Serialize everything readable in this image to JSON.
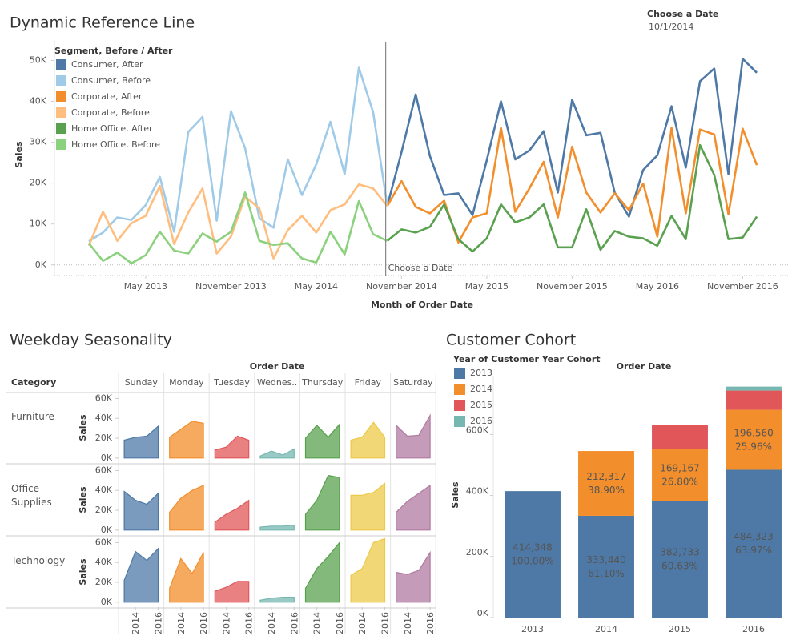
{
  "parameter": {
    "label": "Choose a Date",
    "value": "10/1/2014"
  },
  "chart_data": [
    {
      "type": "line",
      "title": "Dynamic Reference Line",
      "xlabel": "Month of Order Date",
      "ylabel": "Sales",
      "legend_title": "Segment, Before / After",
      "legend": "top-left",
      "reference_line": {
        "label": "Choose a Date"
      },
      "x": [
        "2013-01",
        "2013-02",
        "2013-03",
        "2013-04",
        "2013-05",
        "2013-06",
        "2013-07",
        "2013-08",
        "2013-09",
        "2013-10",
        "2013-11",
        "2013-12",
        "2014-01",
        "2014-02",
        "2014-03",
        "2014-04",
        "2014-05",
        "2014-06",
        "2014-07",
        "2014-08",
        "2014-09",
        "2014-10",
        "2014-11",
        "2014-12",
        "2015-01",
        "2015-02",
        "2015-03",
        "2015-04",
        "2015-05",
        "2015-06",
        "2015-07",
        "2015-08",
        "2015-09",
        "2015-10",
        "2015-11",
        "2015-12",
        "2016-01",
        "2016-02",
        "2016-03",
        "2016-04",
        "2016-05",
        "2016-06",
        "2016-07",
        "2016-08",
        "2016-09",
        "2016-10",
        "2016-11",
        "2016-12"
      ],
      "xticks": [
        {
          "value": "2013-05",
          "label": "May 2013"
        },
        {
          "value": "2013-11",
          "label": "November 2013"
        },
        {
          "value": "2014-05",
          "label": "May 2014"
        },
        {
          "value": "2014-11",
          "label": "November 2014"
        },
        {
          "value": "2015-05",
          "label": "May 2015"
        },
        {
          "value": "2015-11",
          "label": "November 2015"
        },
        {
          "value": "2016-05",
          "label": "May 2016"
        },
        {
          "value": "2016-11",
          "label": "November 2016"
        }
      ],
      "ylim": [
        -2000,
        54000
      ],
      "yticks": [
        {
          "value": 0,
          "label": "0K"
        },
        {
          "value": 10000,
          "label": "10K"
        },
        {
          "value": 20000,
          "label": "20K"
        },
        {
          "value": 30000,
          "label": "30K"
        },
        {
          "value": 40000,
          "label": "40K"
        },
        {
          "value": 50000,
          "label": "50K"
        }
      ],
      "series": [
        {
          "name": "Consumer, After",
          "color": "#4e79a7",
          "values": [
            null,
            null,
            null,
            null,
            null,
            null,
            null,
            null,
            null,
            null,
            null,
            null,
            null,
            null,
            null,
            null,
            null,
            null,
            null,
            null,
            null,
            14400,
            27600,
            41700,
            26600,
            17100,
            17500,
            12200,
            25600,
            40000,
            25800,
            28000,
            32700,
            17700,
            40400,
            31700,
            32300,
            17700,
            11800,
            23200,
            26800,
            38800,
            23800,
            44900,
            48000,
            22200,
            50400,
            47000
          ]
        },
        {
          "name": "Consumer, Before",
          "color": "#a0cbe8",
          "values": [
            5800,
            7900,
            11600,
            11000,
            14600,
            21500,
            8100,
            32500,
            36200,
            10800,
            37600,
            28500,
            11400,
            9100,
            25800,
            17100,
            24600,
            35000,
            22200,
            48200,
            37400,
            14400,
            null,
            null,
            null,
            null,
            null,
            null,
            null,
            null,
            null,
            null,
            null,
            null,
            null,
            null,
            null,
            null,
            null,
            null,
            null,
            null,
            null,
            null,
            null,
            null,
            null,
            null
          ]
        },
        {
          "name": "Corporate, After",
          "color": "#f28e2b",
          "values": [
            null,
            null,
            null,
            null,
            null,
            null,
            null,
            null,
            null,
            null,
            null,
            null,
            null,
            null,
            null,
            null,
            null,
            null,
            null,
            null,
            null,
            14400,
            20500,
            14200,
            12600,
            15700,
            5500,
            11600,
            12600,
            33500,
            13000,
            18700,
            25200,
            11600,
            28900,
            17700,
            12800,
            17500,
            13400,
            19900,
            6900,
            33500,
            12600,
            33100,
            31900,
            12400,
            33300,
            24400
          ]
        },
        {
          "name": "Corporate, Before",
          "color": "#ffbe7d",
          "values": [
            4700,
            13000,
            5900,
            10200,
            12000,
            19300,
            5100,
            12800,
            18700,
            2800,
            6900,
            16700,
            13800,
            1600,
            8500,
            12000,
            7900,
            13400,
            14800,
            19700,
            18700,
            14400,
            null,
            null,
            null,
            null,
            null,
            null,
            null,
            null,
            null,
            null,
            null,
            null,
            null,
            null,
            null,
            null,
            null,
            null,
            null,
            null,
            null,
            null,
            null,
            null,
            null,
            null
          ]
        },
        {
          "name": "Home Office, After",
          "color": "#59a14f",
          "values": [
            null,
            null,
            null,
            null,
            null,
            null,
            null,
            null,
            null,
            null,
            null,
            null,
            null,
            null,
            null,
            null,
            null,
            null,
            null,
            null,
            null,
            5900,
            8700,
            7900,
            9300,
            14800,
            6300,
            3300,
            6500,
            14800,
            10400,
            11600,
            14800,
            4300,
            4300,
            13600,
            3700,
            8300,
            6900,
            6500,
            4700,
            12000,
            6300,
            29300,
            22000,
            6300,
            6700,
            11800
          ]
        },
        {
          "name": "Home Office, Before",
          "color": "#8cd17d",
          "values": [
            5300,
            1000,
            3000,
            400,
            2400,
            8100,
            3500,
            2800,
            7700,
            5700,
            8100,
            17700,
            5900,
            4900,
            5300,
            1600,
            600,
            8100,
            2600,
            15600,
            7500,
            5900,
            null,
            null,
            null,
            null,
            null,
            null,
            null,
            null,
            null,
            null,
            null,
            null,
            null,
            null,
            null,
            null,
            null,
            null,
            null,
            null,
            null,
            null,
            null,
            null,
            null,
            null
          ]
        }
      ]
    },
    {
      "type": "area-grid",
      "title": "Weekday Seasonality",
      "header": "Order Date",
      "row_header": "Category",
      "ylabel": "Sales",
      "rows": [
        "Furniture",
        "Office Supplies",
        "Technology"
      ],
      "columns": [
        "Sunday",
        "Monday",
        "Tuesday",
        "Wednes..",
        "Thursday",
        "Friday",
        "Saturday"
      ],
      "colors": [
        "#4e79a7",
        "#f28e2b",
        "#e15759",
        "#76b7b2",
        "#59a14f",
        "#edc948",
        "#b07aa1"
      ],
      "x": [
        2013,
        2014,
        2015,
        2016
      ],
      "xlim": [
        2012.5,
        2016.5
      ],
      "xticks": [
        2014,
        2016
      ],
      "ylim": [
        -5000,
        66000
      ],
      "yticks": [
        {
          "value": 0,
          "label": "0K"
        },
        {
          "value": 20000,
          "label": "20K"
        },
        {
          "value": 40000,
          "label": "40K"
        },
        {
          "value": 60000,
          "label": "60K"
        }
      ],
      "values": [
        [
          [
            18000,
            21000,
            22000,
            32000
          ],
          [
            21000,
            29000,
            37000,
            35000
          ],
          [
            8000,
            11000,
            22000,
            18000
          ],
          [
            2000,
            7000,
            3000,
            9000
          ],
          [
            20000,
            33000,
            21000,
            34000
          ],
          [
            18000,
            21000,
            36000,
            21000
          ],
          [
            33000,
            22000,
            23000,
            43000
          ]
        ],
        [
          [
            39000,
            30000,
            26000,
            37000
          ],
          [
            18000,
            32000,
            40000,
            45000
          ],
          [
            8000,
            16000,
            22000,
            30000
          ],
          [
            3000,
            4000,
            4000,
            5000
          ],
          [
            16000,
            30000,
            55000,
            53000
          ],
          [
            35000,
            35000,
            38000,
            47000
          ],
          [
            18000,
            29000,
            37000,
            45000
          ]
        ],
        [
          [
            22000,
            51000,
            42000,
            54000
          ],
          [
            14000,
            44000,
            29000,
            50000
          ],
          [
            11000,
            15000,
            21000,
            21000
          ],
          [
            2000,
            4000,
            5000,
            5000
          ],
          [
            14000,
            34000,
            46000,
            60000
          ],
          [
            27000,
            34000,
            60000,
            64000
          ],
          [
            30000,
            28000,
            32000,
            50000
          ]
        ]
      ]
    },
    {
      "type": "stacked-bar",
      "title": "Customer Cohort",
      "header": "Order Date",
      "ylabel": "Sales",
      "legend_title": "Year of Customer Year Cohort",
      "categories": [
        "2013",
        "2014",
        "2015",
        "2016"
      ],
      "ylim": [
        0,
        790000
      ],
      "yticks": [
        {
          "value": 0,
          "label": "0K"
        },
        {
          "value": 200000,
          "label": "200K"
        },
        {
          "value": 400000,
          "label": "400K"
        },
        {
          "value": 600000,
          "label": "600K"
        }
      ],
      "series": [
        {
          "name": "2013",
          "color": "#4e79a7",
          "values": [
            414348,
            333440,
            382733,
            484323
          ],
          "value_labels": [
            "414,348",
            "333,440",
            "382,733",
            "484,323"
          ],
          "percent_labels": [
            "100.00%",
            "61.10%",
            "60.63%",
            "63.97%"
          ]
        },
        {
          "name": "2014",
          "color": "#f28e2b",
          "values": [
            null,
            212317,
            169167,
            196560
          ],
          "value_labels": [
            null,
            "212,317",
            "169,167",
            "196,560"
          ],
          "percent_labels": [
            null,
            "38.90%",
            "26.80%",
            "25.96%"
          ]
        },
        {
          "name": "2015",
          "color": "#e15759",
          "values": [
            null,
            null,
            79360,
            63000
          ]
        },
        {
          "name": "2016",
          "color": "#76b7b2",
          "values": [
            null,
            null,
            null,
            13000
          ]
        }
      ]
    }
  ]
}
